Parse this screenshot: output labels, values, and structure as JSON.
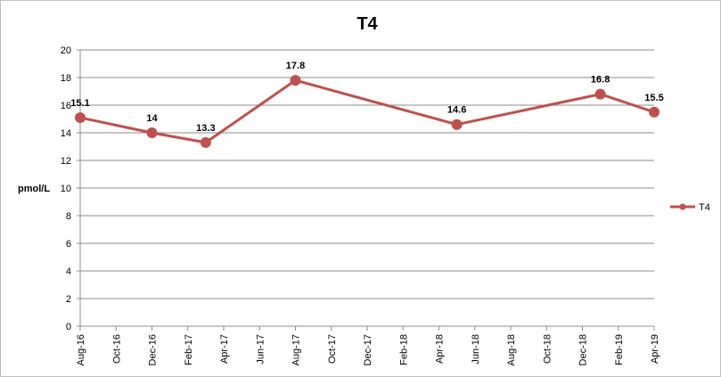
{
  "chart_data": {
    "type": "line",
    "title": "T4",
    "xlabel": "",
    "ylabel": "pmol/L",
    "ylim": [
      0,
      20
    ],
    "yticks": [
      0,
      2,
      4,
      6,
      8,
      10,
      12,
      14,
      16,
      18,
      20
    ],
    "xtick_labels": [
      "Aug-16",
      "Oct-16",
      "Dec-16",
      "Feb-17",
      "Apr-17",
      "Jun-17",
      "Aug-17",
      "Oct-17",
      "Dec-17",
      "Feb-18",
      "Apr-18",
      "Jun-18",
      "Aug-18",
      "Oct-18",
      "Dec-18",
      "Feb-19",
      "Apr-19"
    ],
    "grid": true,
    "legend_position": "right",
    "series": [
      {
        "name": "T4",
        "color": "#C0504D",
        "points": [
          {
            "x": "2016-08",
            "y": 15.1,
            "label": "15.1"
          },
          {
            "x": "2016-12",
            "y": 14,
            "label": "14"
          },
          {
            "x": "2017-03",
            "y": 13.3,
            "label": "13.3"
          },
          {
            "x": "2017-08",
            "y": 17.8,
            "label": "17.8"
          },
          {
            "x": "2018-05",
            "y": 14.6,
            "label": "14.6"
          },
          {
            "x": "2019-01",
            "y": 16.8,
            "label": "16.8"
          },
          {
            "x": "2019-04",
            "y": 15.5,
            "label": "15.5"
          }
        ]
      }
    ]
  }
}
